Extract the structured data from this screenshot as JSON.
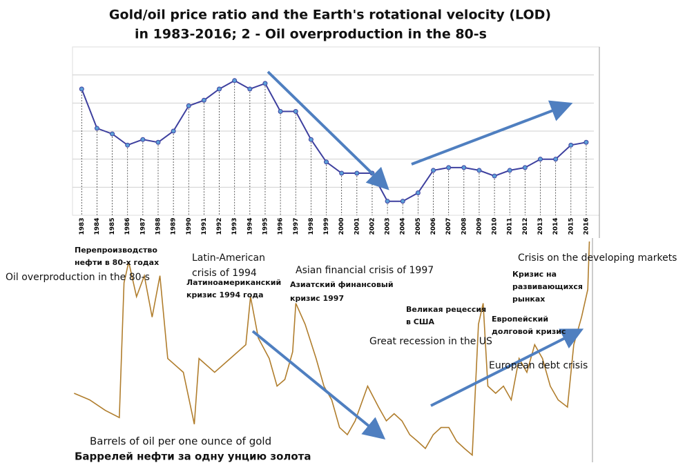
{
  "chart_data": [
    {
      "type": "line",
      "title": [
        "Gold/oil price ratio and the Earth's rotational velocity (LOD)",
        "in 1983-2016; 2 - Oil overproduction in the 80-s"
      ],
      "x": [
        1983,
        1984,
        1985,
        1986,
        1987,
        1988,
        1989,
        1990,
        1991,
        1992,
        1993,
        1994,
        1995,
        1996,
        1997,
        1998,
        1999,
        2000,
        2001,
        2002,
        2003,
        2004,
        2005,
        2006,
        2007,
        2008,
        2009,
        2010,
        2011,
        2012,
        2013,
        2014,
        2015,
        2016
      ],
      "values": [
        4.5,
        3.1,
        2.9,
        2.5,
        2.7,
        2.6,
        3.0,
        3.9,
        4.1,
        4.5,
        4.8,
        4.5,
        4.7,
        3.7,
        3.7,
        2.7,
        1.9,
        1.5,
        1.5,
        1.5,
        0.5,
        0.5,
        0.8,
        1.6,
        1.7,
        1.7,
        1.6,
        1.4,
        1.6,
        1.7,
        2.0,
        2.0,
        2.5,
        2.6
      ],
      "color": "#3d3f9e",
      "xlim": [
        1982.4,
        2016.5
      ],
      "ylim": [
        0,
        6
      ],
      "yticks": [
        1,
        2,
        3,
        4,
        5
      ],
      "grid": true
    },
    {
      "type": "line",
      "x": [
        1983,
        1984,
        1985,
        1985.9,
        1986.2,
        1986.5,
        1987,
        1987.5,
        1988,
        1988.5,
        1989,
        1990,
        1990.7,
        1991,
        1992,
        1993,
        1994,
        1994.3,
        1994.8,
        1995.5,
        1996,
        1996.5,
        1997,
        1997.2,
        1997.8,
        1998.5,
        1999,
        1999.5,
        2000,
        2000.5,
        2001,
        2001.8,
        2002.5,
        2003,
        2003.5,
        2004,
        2004.5,
        2005,
        2005.5,
        2006,
        2006.5,
        2007,
        2007.5,
        2008,
        2008.5,
        2008.9,
        2009.2,
        2009.5,
        2010,
        2010.5,
        2011,
        2011.5,
        2012,
        2012.5,
        2013,
        2013.5,
        2014,
        2014.6,
        2015,
        2015.5,
        2015.9,
        2016
      ],
      "values": [
        17.5,
        16.3,
        14.4,
        13.1,
        37.5,
        41.3,
        35,
        38.8,
        31.3,
        38.8,
        23.8,
        21.3,
        11.9,
        23.8,
        21.3,
        23.8,
        26.3,
        35,
        27.5,
        23.8,
        18.8,
        20,
        25,
        33.8,
        30,
        23.8,
        18.8,
        16.3,
        11.3,
        10,
        12.5,
        18.8,
        15,
        12.5,
        13.8,
        12.5,
        10,
        8.8,
        7.5,
        10,
        11.3,
        11.3,
        8.8,
        7.5,
        6.3,
        30,
        33.8,
        18.8,
        17.5,
        18.8,
        16.3,
        23.8,
        21.3,
        26.3,
        23.8,
        18.8,
        16.3,
        15,
        26.3,
        31.3,
        36.3,
        45
      ],
      "color": "#b07d2c",
      "xlim": [
        1982.9,
        2016.2
      ],
      "ylim": [
        5,
        46
      ],
      "annotations": [
        "Перепроизводство",
        "нефти в 80-х годах",
        "Oil overproduction in the 80-s",
        "Latin-American",
        "crisis of 1994",
        "Латиноамериканский",
        "кризис 1994 года",
        "Asian financial crisis of 1997",
        "Азиатский финансовый",
        "кризис 1997",
        "Великая рецессия",
        "в США",
        "Great recession in the US",
        "Европейский",
        "долговой кризис",
        "European debt crisis",
        "Crisis on the developing markets",
        "Кризис на",
        "развивающихся",
        "рынках",
        "Barrels of oil per one ounce of gold",
        "Баррелей нефти за одну унцию золота"
      ]
    }
  ]
}
